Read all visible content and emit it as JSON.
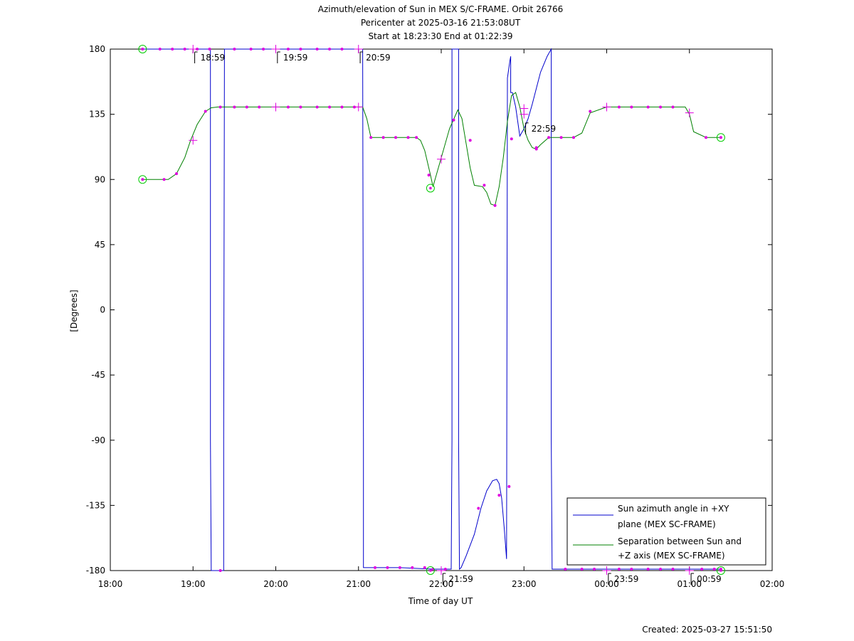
{
  "chart_data": {
    "type": "line",
    "title_lines": [
      "Azimuth/elevation of Sun in MEX S/C-FRAME.  Orbit 26766",
      "Pericenter at 2025-03-16 21:53:08UT",
      "Start at 18:23:30 End at 01:22:39"
    ],
    "xlabel": "Time of day UT",
    "ylabel": "[Degrees]",
    "xlim": [
      18.0,
      26.0
    ],
    "ylim": [
      -180,
      180
    ],
    "x_ticks": [
      {
        "value": 18,
        "label": "18:00"
      },
      {
        "value": 19,
        "label": "19:00"
      },
      {
        "value": 20,
        "label": "20:00"
      },
      {
        "value": 21,
        "label": "21:00"
      },
      {
        "value": 22,
        "label": "22:00"
      },
      {
        "value": 23,
        "label": "23:00"
      },
      {
        "value": 24,
        "label": "00:00"
      },
      {
        "value": 25,
        "label": "01:00"
      },
      {
        "value": 26,
        "label": "02:00"
      }
    ],
    "y_ticks": [
      180,
      135,
      90,
      45,
      0,
      -45,
      -90,
      -135,
      -180
    ],
    "legend_position": "bottom-right",
    "series": [
      {
        "name": "Sun azimuth angle in +XY plane (MEX SC-FRAME)",
        "legend_lines": [
          "Sun azimuth angle in +XY",
          "plane (MEX SC-FRAME)"
        ],
        "color": "#0000cc",
        "x": [
          18.39,
          19.0,
          19.2,
          19.21,
          19.21,
          19.22,
          19.37,
          19.37,
          19.38,
          19.5,
          20.0,
          20.5,
          21.0,
          21.05,
          21.06,
          21.06,
          21.07,
          21.2,
          21.5,
          21.9,
          22.0,
          22.12,
          22.13,
          22.13,
          22.14,
          22.2,
          22.21,
          22.21,
          22.22,
          22.24,
          22.3,
          22.4,
          22.48,
          22.55,
          22.62,
          22.67,
          22.7,
          22.73,
          22.76,
          22.79,
          22.8,
          22.83,
          22.84,
          22.84,
          22.84,
          22.86,
          22.9,
          22.95,
          23.0,
          23.05,
          23.1,
          23.15,
          23.2,
          23.28,
          23.33,
          23.33,
          23.34,
          23.4,
          23.6,
          24.0,
          24.5,
          25.0,
          25.38
        ],
        "y": [
          180,
          180,
          180,
          180,
          -90,
          -180,
          -180,
          -90,
          180,
          180,
          180,
          180,
          180,
          180,
          -90,
          -178,
          -178,
          -178,
          -178,
          -179,
          -179,
          -179,
          -90,
          180,
          180,
          180,
          180,
          -90,
          -179,
          -178,
          -170,
          -155,
          -137,
          -125,
          -118,
          -117,
          -120,
          -130,
          -150,
          -172,
          160,
          172,
          175,
          160,
          150,
          150,
          140,
          120,
          125,
          132,
          142,
          153,
          164,
          175,
          180,
          -90,
          -179,
          -179,
          -179,
          -179,
          -179,
          -179,
          -179
        ]
      },
      {
        "name": "Separation between Sun and +Z axis (MEX SC-FRAME)",
        "legend_lines": [
          "Separation between Sun and",
          "+Z axis (MEX SC-FRAME)"
        ],
        "color": "#008000",
        "x": [
          18.39,
          18.6,
          18.7,
          18.8,
          18.9,
          18.97,
          19.05,
          19.15,
          19.22,
          19.3,
          19.5,
          19.8,
          20.0,
          20.5,
          20.9,
          21.05,
          21.1,
          21.15,
          21.3,
          21.5,
          21.7,
          21.75,
          21.8,
          21.87,
          21.9,
          21.95,
          22.0,
          22.1,
          22.2,
          22.25,
          22.3,
          22.35,
          22.4,
          22.5,
          22.55,
          22.6,
          22.65,
          22.7,
          22.75,
          22.8,
          22.85,
          22.9,
          22.95,
          23.0,
          23.05,
          23.1,
          23.15,
          23.2,
          23.3,
          23.6,
          23.7,
          23.8,
          24.0,
          24.3,
          24.7,
          24.95,
          25.0,
          25.05,
          25.2,
          25.38
        ],
        "y": [
          90,
          90,
          90,
          94,
          105,
          117,
          128,
          137,
          139.5,
          140,
          140,
          140,
          140,
          140,
          140,
          140,
          132,
          119,
          119,
          119,
          119,
          117,
          110,
          93,
          85,
          95,
          105,
          125,
          138,
          132,
          115,
          98,
          86,
          85,
          81,
          73,
          72,
          85,
          105,
          130,
          148,
          150,
          140,
          125,
          117,
          112,
          111,
          114,
          119,
          119,
          122,
          136,
          140,
          140,
          140,
          140,
          135,
          123,
          119,
          119
        ]
      }
    ],
    "markers": [
      {
        "series": 0,
        "x": 18.39,
        "y": 180
      },
      {
        "series": 0,
        "x": 18.6,
        "y": 180
      },
      {
        "series": 0,
        "x": 18.75,
        "y": 180
      },
      {
        "series": 0,
        "x": 18.9,
        "y": 180
      },
      {
        "series": 0,
        "x": 19.05,
        "y": 180
      },
      {
        "series": 0,
        "x": 19.2,
        "y": 180
      },
      {
        "series": 0,
        "x": 19.33,
        "y": -180
      },
      {
        "series": 0,
        "x": 19.5,
        "y": 180
      },
      {
        "series": 0,
        "x": 19.7,
        "y": 180
      },
      {
        "series": 0,
        "x": 19.85,
        "y": 180
      },
      {
        "series": 0,
        "x": 20.15,
        "y": 180
      },
      {
        "series": 0,
        "x": 20.3,
        "y": 180
      },
      {
        "series": 0,
        "x": 20.5,
        "y": 180
      },
      {
        "series": 0,
        "x": 20.65,
        "y": 180
      },
      {
        "series": 0,
        "x": 20.8,
        "y": 180
      },
      {
        "series": 0,
        "x": 21.2,
        "y": -178
      },
      {
        "series": 0,
        "x": 21.35,
        "y": -178
      },
      {
        "series": 0,
        "x": 21.5,
        "y": -178
      },
      {
        "series": 0,
        "x": 21.65,
        "y": -178
      },
      {
        "series": 0,
        "x": 21.8,
        "y": -178
      },
      {
        "series": 0,
        "x": 21.9,
        "y": -179
      },
      {
        "series": 0,
        "x": 22.05,
        "y": -179
      },
      {
        "series": 0,
        "x": 22.45,
        "y": -137
      },
      {
        "series": 0,
        "x": 22.7,
        "y": -128
      },
      {
        "series": 0,
        "x": 22.82,
        "y": -122
      },
      {
        "series": 0,
        "x": 23.15,
        "y": 112
      },
      {
        "series": 0,
        "x": 23.5,
        "y": -179
      },
      {
        "series": 0,
        "x": 23.7,
        "y": -179
      },
      {
        "series": 0,
        "x": 23.85,
        "y": -179
      },
      {
        "series": 0,
        "x": 24.15,
        "y": -179
      },
      {
        "series": 0,
        "x": 24.3,
        "y": -179
      },
      {
        "series": 0,
        "x": 24.5,
        "y": -179
      },
      {
        "series": 0,
        "x": 24.65,
        "y": -179
      },
      {
        "series": 0,
        "x": 24.8,
        "y": -179
      },
      {
        "series": 0,
        "x": 25.15,
        "y": -179
      },
      {
        "series": 0,
        "x": 25.3,
        "y": -179
      },
      {
        "series": 0,
        "x": 25.38,
        "y": -179
      },
      {
        "series": 1,
        "x": 18.39,
        "y": 90
      },
      {
        "series": 1,
        "x": 18.65,
        "y": 90
      },
      {
        "series": 1,
        "x": 18.8,
        "y": 94
      },
      {
        "series": 1,
        "x": 19.15,
        "y": 137
      },
      {
        "series": 1,
        "x": 19.33,
        "y": 140
      },
      {
        "series": 1,
        "x": 19.5,
        "y": 140
      },
      {
        "series": 1,
        "x": 19.65,
        "y": 140
      },
      {
        "series": 1,
        "x": 19.8,
        "y": 140
      },
      {
        "series": 1,
        "x": 20.15,
        "y": 140
      },
      {
        "series": 1,
        "x": 20.3,
        "y": 140
      },
      {
        "series": 1,
        "x": 20.5,
        "y": 140
      },
      {
        "series": 1,
        "x": 20.65,
        "y": 140
      },
      {
        "series": 1,
        "x": 20.8,
        "y": 140
      },
      {
        "series": 1,
        "x": 20.95,
        "y": 140
      },
      {
        "series": 1,
        "x": 21.15,
        "y": 119
      },
      {
        "series": 1,
        "x": 21.3,
        "y": 119
      },
      {
        "series": 1,
        "x": 21.45,
        "y": 119
      },
      {
        "series": 1,
        "x": 21.6,
        "y": 119
      },
      {
        "series": 1,
        "x": 21.7,
        "y": 119
      },
      {
        "series": 1,
        "x": 21.85,
        "y": 93
      },
      {
        "series": 1,
        "x": 22.15,
        "y": 131
      },
      {
        "series": 1,
        "x": 22.35,
        "y": 117
      },
      {
        "series": 1,
        "x": 22.52,
        "y": 86
      },
      {
        "series": 1,
        "x": 22.65,
        "y": 72
      },
      {
        "series": 1,
        "x": 22.85,
        "y": 118
      },
      {
        "series": 1,
        "x": 23.15,
        "y": 111
      },
      {
        "series": 1,
        "x": 23.3,
        "y": 119
      },
      {
        "series": 1,
        "x": 23.45,
        "y": 119
      },
      {
        "series": 1,
        "x": 23.6,
        "y": 119
      },
      {
        "series": 1,
        "x": 23.8,
        "y": 137
      },
      {
        "series": 1,
        "x": 24.15,
        "y": 140
      },
      {
        "series": 1,
        "x": 24.3,
        "y": 140
      },
      {
        "series": 1,
        "x": 24.5,
        "y": 140
      },
      {
        "series": 1,
        "x": 24.65,
        "y": 140
      },
      {
        "series": 1,
        "x": 24.8,
        "y": 140
      },
      {
        "series": 1,
        "x": 25.2,
        "y": 119
      },
      {
        "series": 1,
        "x": 25.38,
        "y": 119
      }
    ],
    "hour_markers": [
      {
        "x": 19.0,
        "y": 180
      },
      {
        "x": 20.0,
        "y": 180
      },
      {
        "x": 21.0,
        "y": 180
      },
      {
        "x": 19.0,
        "y": 117
      },
      {
        "x": 20.0,
        "y": 140
      },
      {
        "x": 21.0,
        "y": 140
      },
      {
        "x": 22.0,
        "y": 104
      },
      {
        "x": 23.0,
        "y": 139
      },
      {
        "x": 23.0,
        "y": 135
      },
      {
        "x": 24.0,
        "y": 140
      },
      {
        "x": 25.0,
        "y": 136
      },
      {
        "x": 22.0,
        "y": -180
      },
      {
        "x": 24.0,
        "y": -180
      },
      {
        "x": 25.0,
        "y": -180
      }
    ],
    "endpoints": [
      {
        "x": 18.39,
        "y": 180
      },
      {
        "x": 18.39,
        "y": 90
      },
      {
        "x": 21.87,
        "y": 84
      },
      {
        "x": 21.87,
        "y": -180
      },
      {
        "x": 25.38,
        "y": 119
      },
      {
        "x": 25.38,
        "y": -180
      }
    ],
    "annotations": [
      {
        "text": "18:59",
        "x": 19.02,
        "y": 180
      },
      {
        "text": "19:59",
        "x": 20.02,
        "y": 180
      },
      {
        "text": "20:59",
        "x": 21.02,
        "y": 180
      },
      {
        "text": "22:59",
        "x": 23.02,
        "y": 131
      },
      {
        "text": "21:59",
        "x": 22.02,
        "y": -180
      },
      {
        "text": "23:59",
        "x": 24.02,
        "y": -180
      },
      {
        "text": "00:59",
        "x": 25.02,
        "y": -180
      }
    ],
    "created_text": "Created: 2025-03-27 15:51:50"
  }
}
